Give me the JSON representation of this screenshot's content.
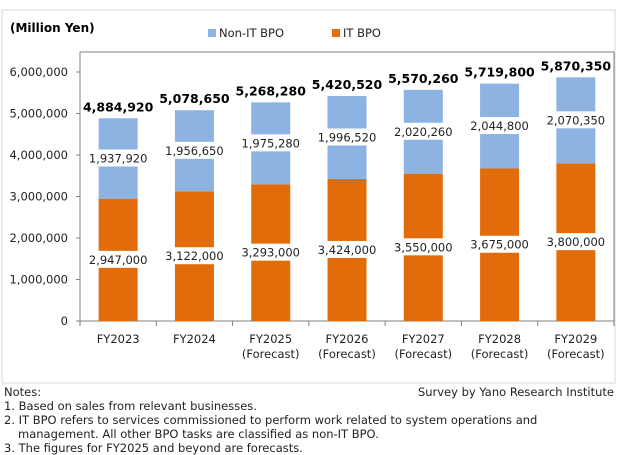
{
  "chart_data": {
    "type": "bar",
    "stacked": true,
    "unit_label": "(Million Yen)",
    "categories": [
      [
        "FY2023"
      ],
      [
        "FY2024"
      ],
      [
        "FY2025",
        "(Forecast)"
      ],
      [
        "FY2026",
        "(Forecast)"
      ],
      [
        "FY2027",
        "(Forecast)"
      ],
      [
        "FY2028",
        "(Forecast)"
      ],
      [
        "FY2029",
        "(Forecast)"
      ]
    ],
    "series": [
      {
        "name": "IT BPO",
        "color": "#E36C0A",
        "values": [
          2947000,
          3122000,
          3293000,
          3424000,
          3550000,
          3675000,
          3800000
        ]
      },
      {
        "name": "Non-IT BPO",
        "color": "#8DB3E2",
        "values": [
          1937920,
          1956650,
          1975280,
          1996520,
          2020260,
          2044800,
          2070350
        ]
      }
    ],
    "totals": [
      4884920,
      5078650,
      5268280,
      5420520,
      5570260,
      5719800,
      5870350
    ],
    "ylim": [
      0,
      6000000
    ],
    "yticks": [
      "0",
      "1,000,000",
      "2,000,000",
      "3,000,000",
      "4,000,000",
      "5,000,000",
      "6,000,000"
    ],
    "legend": "top",
    "grid": false
  },
  "notes": {
    "heading": "Notes:",
    "source": "Survey by Yano Research Institute",
    "items": [
      "1. Based on sales from relevant businesses.",
      "2. IT BPO refers to services commissioned to perform work related to system operations and",
      "management. All other BPO tasks are classified as non-IT BPO.",
      "3. The figures for FY2025 and beyond are forecasts."
    ]
  }
}
